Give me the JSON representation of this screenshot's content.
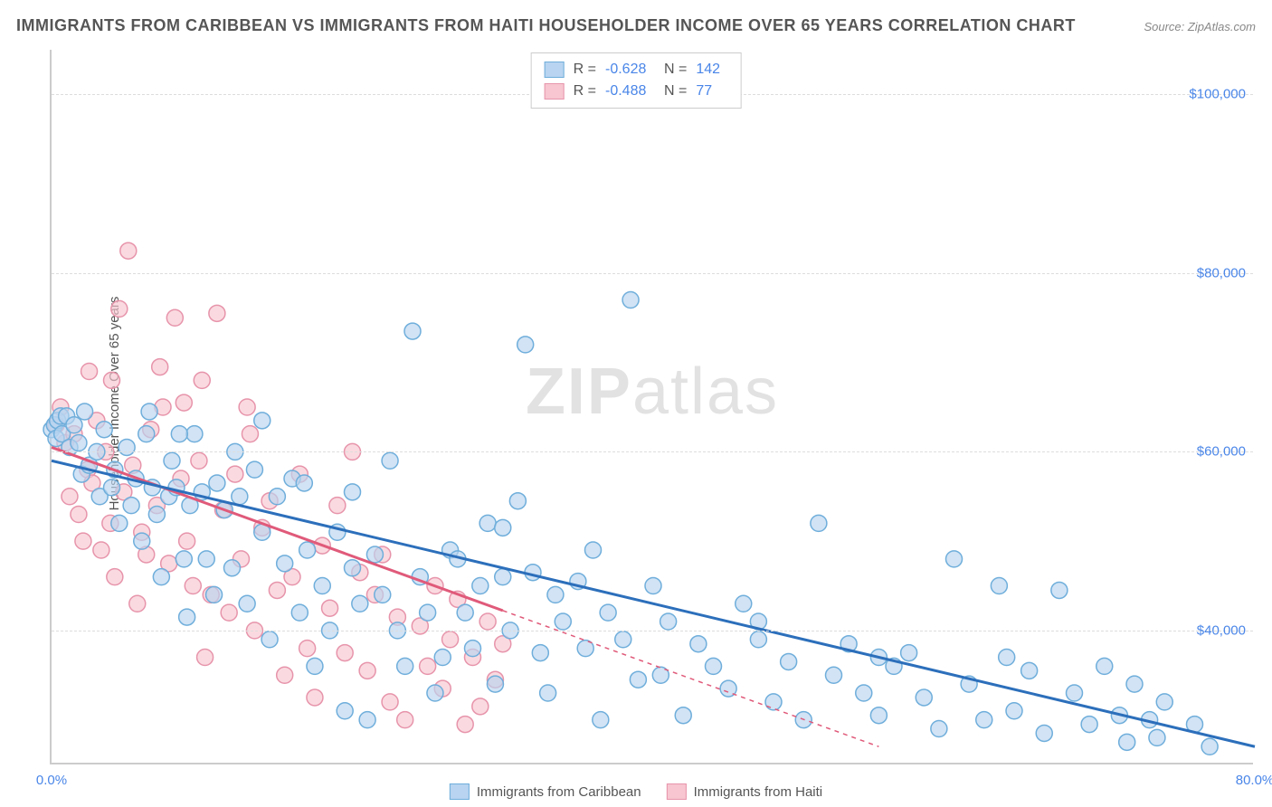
{
  "title": "IMMIGRANTS FROM CARIBBEAN VS IMMIGRANTS FROM HAITI HOUSEHOLDER INCOME OVER 65 YEARS CORRELATION CHART",
  "source": "Source: ZipAtlas.com",
  "ylabel": "Householder Income Over 65 years",
  "watermark_bold": "ZIP",
  "watermark_rest": "atlas",
  "chart": {
    "type": "scatter",
    "background_color": "#ffffff",
    "grid_color": "#dddddd",
    "axis_color": "#cccccc",
    "tick_color": "#4a86e8",
    "xlim": [
      0,
      80
    ],
    "ylim": [
      25000,
      105000
    ],
    "xticks": [
      {
        "val": 0,
        "label": "0.0%"
      },
      {
        "val": 80,
        "label": "80.0%"
      }
    ],
    "yticks": [
      {
        "val": 40000,
        "label": "$40,000"
      },
      {
        "val": 60000,
        "label": "$60,000"
      },
      {
        "val": 80000,
        "label": "$80,000"
      },
      {
        "val": 100000,
        "label": "$100,000"
      }
    ],
    "marker_radius": 9,
    "marker_stroke_width": 1.5,
    "line_width": 3,
    "series": [
      {
        "name": "Immigrants from Caribbean",
        "fill": "#b8d4f0",
        "stroke": "#6faedb",
        "line_color": "#2c6fbb",
        "R": "-0.628",
        "N": "142",
        "regression": {
          "x1": 0,
          "y1": 59000,
          "x2": 80,
          "y2": 27000,
          "solid_until": 80
        },
        "points": [
          [
            0,
            62500
          ],
          [
            0.2,
            63000
          ],
          [
            0.3,
            61500
          ],
          [
            0.4,
            63500
          ],
          [
            0.6,
            64000
          ],
          [
            0.7,
            62000
          ],
          [
            1,
            64000
          ],
          [
            1.2,
            60500
          ],
          [
            1.5,
            63000
          ],
          [
            1.8,
            61000
          ],
          [
            2,
            57500
          ],
          [
            2.2,
            64500
          ],
          [
            2.5,
            58500
          ],
          [
            3,
            60000
          ],
          [
            3.2,
            55000
          ],
          [
            3.5,
            62500
          ],
          [
            4,
            56000
          ],
          [
            4.2,
            58000
          ],
          [
            4.5,
            52000
          ],
          [
            5,
            60500
          ],
          [
            5.3,
            54000
          ],
          [
            5.6,
            57000
          ],
          [
            6,
            50000
          ],
          [
            6.3,
            62000
          ],
          [
            6.7,
            56000
          ],
          [
            7,
            53000
          ],
          [
            7.3,
            46000
          ],
          [
            7.8,
            55000
          ],
          [
            8,
            59000
          ],
          [
            8.3,
            56000
          ],
          [
            8.8,
            48000
          ],
          [
            9,
            41500
          ],
          [
            9.5,
            62000
          ],
          [
            10,
            55500
          ],
          [
            10.3,
            48000
          ],
          [
            10.8,
            44000
          ],
          [
            11,
            56500
          ],
          [
            11.5,
            53500
          ],
          [
            12,
            47000
          ],
          [
            12.5,
            55000
          ],
          [
            13,
            43000
          ],
          [
            13.5,
            58000
          ],
          [
            14,
            51000
          ],
          [
            14.5,
            39000
          ],
          [
            15,
            55000
          ],
          [
            15.5,
            47500
          ],
          [
            16,
            57000
          ],
          [
            16.5,
            42000
          ],
          [
            17,
            49000
          ],
          [
            17.5,
            36000
          ],
          [
            18,
            45000
          ],
          [
            18.5,
            40000
          ],
          [
            19,
            51000
          ],
          [
            19.5,
            31000
          ],
          [
            20,
            47000
          ],
          [
            20.5,
            43000
          ],
          [
            21,
            30000
          ],
          [
            21.5,
            48500
          ],
          [
            22,
            44000
          ],
          [
            22.5,
            59000
          ],
          [
            23,
            40000
          ],
          [
            23.5,
            36000
          ],
          [
            24,
            73500
          ],
          [
            24.5,
            46000
          ],
          [
            25,
            42000
          ],
          [
            25.5,
            33000
          ],
          [
            26,
            37000
          ],
          [
            26.5,
            49000
          ],
          [
            27,
            48000
          ],
          [
            27.5,
            42000
          ],
          [
            28,
            38000
          ],
          [
            28.5,
            45000
          ],
          [
            29,
            52000
          ],
          [
            29.5,
            34000
          ],
          [
            30,
            46000
          ],
          [
            30.5,
            40000
          ],
          [
            31,
            54500
          ],
          [
            31.5,
            72000
          ],
          [
            32,
            46500
          ],
          [
            32.5,
            37500
          ],
          [
            33,
            33000
          ],
          [
            33.5,
            44000
          ],
          [
            34,
            41000
          ],
          [
            35,
            45500
          ],
          [
            35.5,
            38000
          ],
          [
            36,
            49000
          ],
          [
            36.5,
            30000
          ],
          [
            37,
            42000
          ],
          [
            38,
            39000
          ],
          [
            38.5,
            77000
          ],
          [
            39,
            34500
          ],
          [
            40,
            45000
          ],
          [
            40.5,
            35000
          ],
          [
            41,
            41000
          ],
          [
            42,
            30500
          ],
          [
            43,
            38500
          ],
          [
            44,
            36000
          ],
          [
            45,
            33500
          ],
          [
            46,
            43000
          ],
          [
            47,
            39000
          ],
          [
            48,
            32000
          ],
          [
            49,
            36500
          ],
          [
            50,
            30000
          ],
          [
            51,
            52000
          ],
          [
            52,
            35000
          ],
          [
            53,
            38500
          ],
          [
            54,
            33000
          ],
          [
            55,
            30500
          ],
          [
            56,
            36000
          ],
          [
            57,
            37500
          ],
          [
            58,
            32500
          ],
          [
            59,
            29000
          ],
          [
            60,
            48000
          ],
          [
            61,
            34000
          ],
          [
            62,
            30000
          ],
          [
            63,
            45000
          ],
          [
            63.5,
            37000
          ],
          [
            64,
            31000
          ],
          [
            65,
            35500
          ],
          [
            66,
            28500
          ],
          [
            67,
            44500
          ],
          [
            68,
            33000
          ],
          [
            69,
            29500
          ],
          [
            70,
            36000
          ],
          [
            71,
            30500
          ],
          [
            71.5,
            27500
          ],
          [
            72,
            34000
          ],
          [
            73,
            30000
          ],
          [
            73.5,
            28000
          ],
          [
            74,
            32000
          ],
          [
            76,
            29500
          ],
          [
            77,
            27000
          ],
          [
            55,
            37000
          ],
          [
            47,
            41000
          ],
          [
            14,
            63500
          ],
          [
            9.2,
            54000
          ],
          [
            30,
            51500
          ],
          [
            20,
            55500
          ],
          [
            12.2,
            60000
          ],
          [
            16.8,
            56500
          ],
          [
            8.5,
            62000
          ],
          [
            6.5,
            64500
          ]
        ]
      },
      {
        "name": "Immigrants from Haiti",
        "fill": "#f7c6d0",
        "stroke": "#e794ab",
        "line_color": "#e05a7a",
        "R": "-0.488",
        "N": "77",
        "regression": {
          "x1": 0,
          "y1": 60500,
          "x2": 55,
          "y2": 27000,
          "solid_until": 30
        },
        "points": [
          [
            0.3,
            63000
          ],
          [
            0.6,
            65000
          ],
          [
            0.9,
            61000
          ],
          [
            1.2,
            55000
          ],
          [
            1.5,
            62000
          ],
          [
            1.8,
            53000
          ],
          [
            2.1,
            50000
          ],
          [
            2.4,
            58000
          ],
          [
            2.7,
            56500
          ],
          [
            3,
            63500
          ],
          [
            3.3,
            49000
          ],
          [
            3.6,
            60000
          ],
          [
            3.9,
            52000
          ],
          [
            4.2,
            46000
          ],
          [
            4.5,
            76000
          ],
          [
            4.8,
            55500
          ],
          [
            5.1,
            82500
          ],
          [
            5.4,
            58500
          ],
          [
            5.7,
            43000
          ],
          [
            6,
            51000
          ],
          [
            6.3,
            48500
          ],
          [
            6.6,
            62500
          ],
          [
            7,
            54000
          ],
          [
            7.4,
            65000
          ],
          [
            7.8,
            47500
          ],
          [
            8.2,
            75000
          ],
          [
            8.6,
            57000
          ],
          [
            9,
            50000
          ],
          [
            9.4,
            45000
          ],
          [
            9.8,
            59000
          ],
          [
            10.2,
            37000
          ],
          [
            10.6,
            44000
          ],
          [
            11,
            75500
          ],
          [
            11.4,
            53500
          ],
          [
            11.8,
            42000
          ],
          [
            12.2,
            57500
          ],
          [
            12.6,
            48000
          ],
          [
            13,
            65000
          ],
          [
            13.5,
            40000
          ],
          [
            14,
            51500
          ],
          [
            14.5,
            54500
          ],
          [
            15,
            44500
          ],
          [
            15.5,
            35000
          ],
          [
            16,
            46000
          ],
          [
            16.5,
            57500
          ],
          [
            17,
            38000
          ],
          [
            17.5,
            32500
          ],
          [
            18,
            49500
          ],
          [
            18.5,
            42500
          ],
          [
            19,
            54000
          ],
          [
            19.5,
            37500
          ],
          [
            20,
            60000
          ],
          [
            20.5,
            46500
          ],
          [
            21,
            35500
          ],
          [
            21.5,
            44000
          ],
          [
            22,
            48500
          ],
          [
            22.5,
            32000
          ],
          [
            23,
            41500
          ],
          [
            23.5,
            30000
          ],
          [
            24.5,
            40500
          ],
          [
            25,
            36000
          ],
          [
            25.5,
            45000
          ],
          [
            26,
            33500
          ],
          [
            26.5,
            39000
          ],
          [
            27,
            43500
          ],
          [
            27.5,
            29500
          ],
          [
            28,
            37000
          ],
          [
            28.5,
            31500
          ],
          [
            29,
            41000
          ],
          [
            29.5,
            34500
          ],
          [
            30,
            38500
          ],
          [
            10,
            68000
          ],
          [
            7.2,
            69500
          ],
          [
            4.0,
            68000
          ],
          [
            2.5,
            69000
          ],
          [
            13.2,
            62000
          ],
          [
            8.8,
            65500
          ]
        ]
      }
    ]
  }
}
